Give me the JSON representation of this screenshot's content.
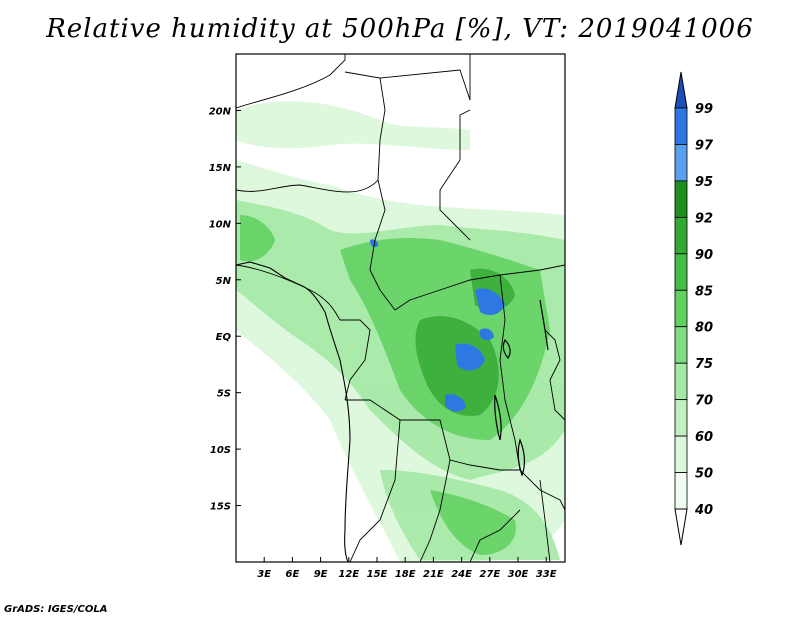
{
  "title": "Relative humidity at 500hPa [%], VT: 2019041006",
  "credit": "GrADS: IGES/COLA",
  "map": {
    "lon_ticks": [
      "3E",
      "6E",
      "9E",
      "12E",
      "15E",
      "18E",
      "21E",
      "24E",
      "27E",
      "30E",
      "33E"
    ],
    "lat_ticks": [
      "20N",
      "15N",
      "10N",
      "5N",
      "EQ",
      "5S",
      "10S",
      "15S"
    ],
    "lon_range": [
      0,
      35
    ],
    "lat_range": [
      -20,
      25
    ]
  },
  "colorbar": {
    "levels": [
      "99",
      "97",
      "95",
      "92",
      "90",
      "85",
      "80",
      "75",
      "70",
      "60",
      "50",
      "40"
    ],
    "colors": [
      "#1e5fd0",
      "#2e78e4",
      "#5aa0f0",
      "#1f8f1f",
      "#33a833",
      "#45bd45",
      "#60d060",
      "#82dc82",
      "#a4e8a4",
      "#c2f0c2",
      "#dcf8dc",
      "#f0fcf0"
    ],
    "top_arrow_color": "#1a4fb8",
    "bottom_arrow_color": "#ffffff"
  }
}
